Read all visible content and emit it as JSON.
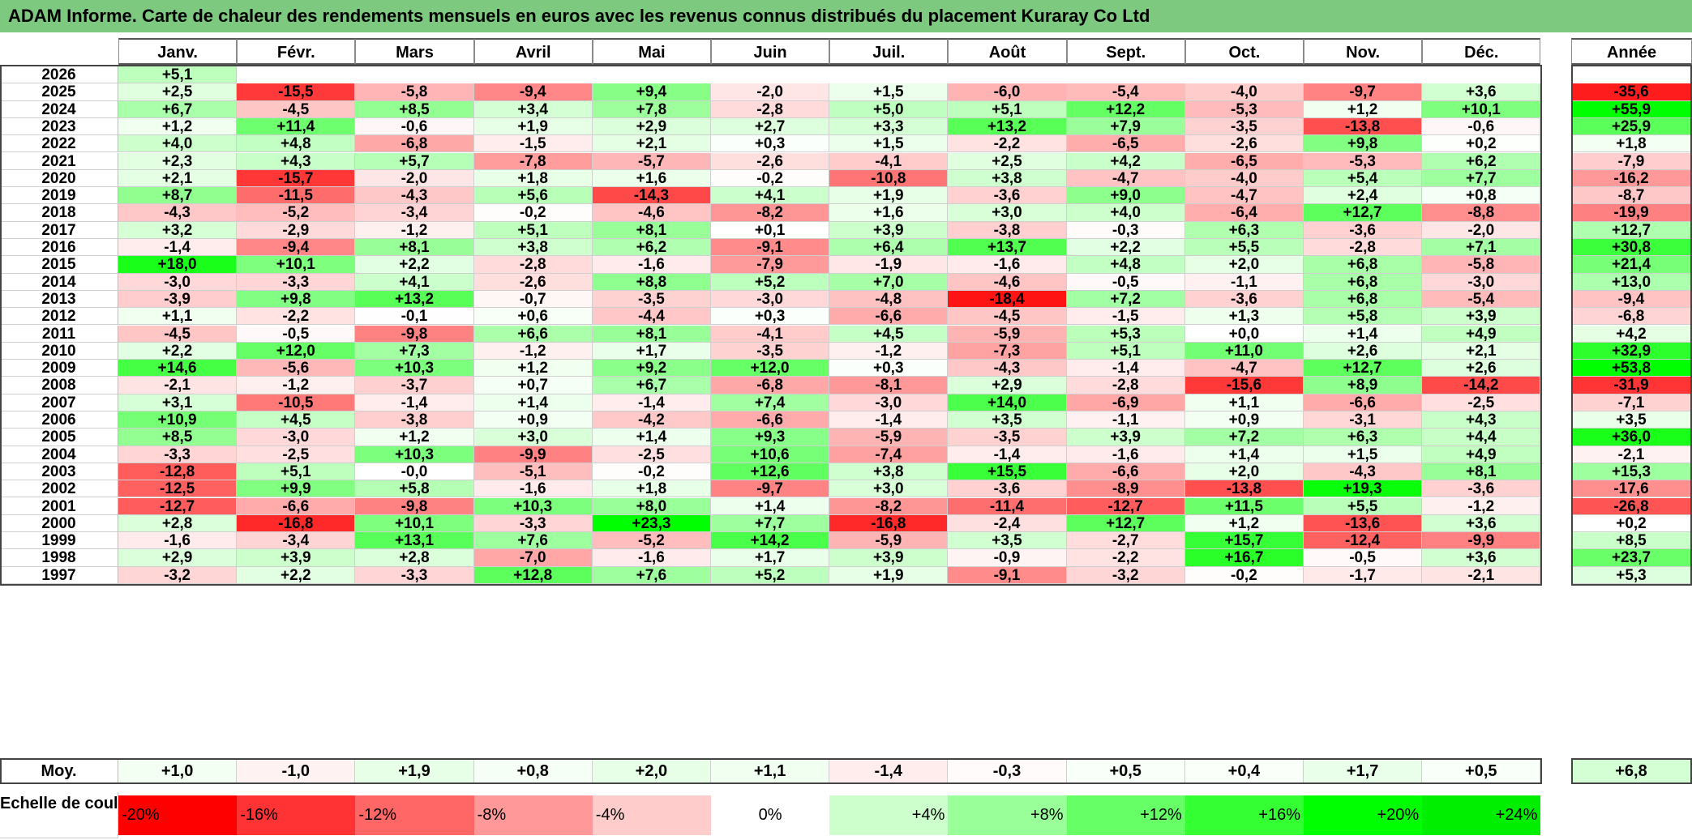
{
  "title": "ADAM Informe. Carte de chaleur des rendements mensuels en euros avec les revenus connus distribués du placement Kuraray Co Ltd",
  "chart_data": {
    "type": "heatmap",
    "title": "ADAM Informe. Carte de chaleur des rendements mensuels en euros avec les revenus connus distribués du placement Kuraray Co Ltd",
    "columns": [
      "Janv.",
      "Févr.",
      "Mars",
      "Avril",
      "Mai",
      "Juin",
      "Juil.",
      "Août",
      "Sept.",
      "Oct.",
      "Nov.",
      "Déc."
    ],
    "annual_header": "Année",
    "rows": [
      {
        "year": "2026",
        "values": [
          "+5,1",
          null,
          null,
          null,
          null,
          null,
          null,
          null,
          null,
          null,
          null,
          null
        ],
        "annual": null
      },
      {
        "year": "2025",
        "values": [
          "+2,5",
          "-15,5",
          "-5,8",
          "-9,4",
          "+9,4",
          "-2,0",
          "+1,5",
          "-6,0",
          "-5,4",
          "-4,0",
          "-9,7",
          "+3,6"
        ],
        "annual": "-35,6"
      },
      {
        "year": "2024",
        "values": [
          "+6,7",
          "-4,5",
          "+8,5",
          "+3,4",
          "+7,8",
          "-2,8",
          "+5,0",
          "+5,1",
          "+12,2",
          "-5,3",
          "+1,2",
          "+10,1"
        ],
        "annual": "+55,9"
      },
      {
        "year": "2023",
        "values": [
          "+1,2",
          "+11,4",
          "-0,6",
          "+1,9",
          "+2,9",
          "+2,7",
          "+3,3",
          "+13,2",
          "+7,9",
          "-3,5",
          "-13,8",
          "-0,6"
        ],
        "annual": "+25,9"
      },
      {
        "year": "2022",
        "values": [
          "+4,0",
          "+4,8",
          "-6,8",
          "-1,5",
          "+2,1",
          "+0,3",
          "+1,5",
          "-2,2",
          "-6,5",
          "-2,6",
          "+9,8",
          "+0,2"
        ],
        "annual": "+1,8"
      },
      {
        "year": "2021",
        "values": [
          "+2,3",
          "+4,3",
          "+5,7",
          "-7,8",
          "-5,7",
          "-2,6",
          "-4,1",
          "+2,5",
          "+4,2",
          "-6,5",
          "-5,3",
          "+6,2"
        ],
        "annual": "-7,9"
      },
      {
        "year": "2020",
        "values": [
          "+2,1",
          "-15,7",
          "-2,0",
          "+1,8",
          "+1,6",
          "-0,2",
          "-10,8",
          "+3,8",
          "-4,7",
          "-4,0",
          "+5,4",
          "+7,7"
        ],
        "annual": "-16,2"
      },
      {
        "year": "2019",
        "values": [
          "+8,7",
          "-11,5",
          "-4,3",
          "+5,6",
          "-14,3",
          "+4,1",
          "+1,9",
          "-3,6",
          "+9,0",
          "-4,7",
          "+2,4",
          "+0,8"
        ],
        "annual": "-8,7"
      },
      {
        "year": "2018",
        "values": [
          "-4,3",
          "-5,2",
          "-3,4",
          "-0,2",
          "-4,6",
          "-8,2",
          "+1,6",
          "+3,0",
          "+4,0",
          "-6,4",
          "+12,7",
          "-8,8"
        ],
        "annual": "-19,9"
      },
      {
        "year": "2017",
        "values": [
          "+3,2",
          "-2,9",
          "-1,2",
          "+5,1",
          "+8,1",
          "+0,1",
          "+3,9",
          "-3,8",
          "-0,3",
          "+6,3",
          "-3,6",
          "-2,0"
        ],
        "annual": "+12,7"
      },
      {
        "year": "2016",
        "values": [
          "-1,4",
          "-9,4",
          "+8,1",
          "+3,8",
          "+6,2",
          "-9,1",
          "+6,4",
          "+13,7",
          "+2,2",
          "+5,5",
          "-2,8",
          "+7,1"
        ],
        "annual": "+30,8"
      },
      {
        "year": "2015",
        "values": [
          "+18,0",
          "+10,1",
          "+2,2",
          "-2,8",
          "-1,6",
          "-7,9",
          "-1,9",
          "-1,6",
          "+4,8",
          "+2,0",
          "+6,8",
          "-5,8"
        ],
        "annual": "+21,4"
      },
      {
        "year": "2014",
        "values": [
          "-3,0",
          "-3,3",
          "+4,1",
          "-2,6",
          "+8,8",
          "+5,2",
          "+7,0",
          "-4,6",
          "-0,5",
          "-1,1",
          "+6,8",
          "-3,0"
        ],
        "annual": "+13,0"
      },
      {
        "year": "2013",
        "values": [
          "-3,9",
          "+9,8",
          "+13,2",
          "-0,7",
          "-3,5",
          "-3,0",
          "-4,8",
          "-18,4",
          "+7,2",
          "-3,6",
          "+6,8",
          "-5,4"
        ],
        "annual": "-9,4"
      },
      {
        "year": "2012",
        "values": [
          "+1,1",
          "-2,2",
          "-0,1",
          "+0,6",
          "-4,4",
          "+0,3",
          "-6,6",
          "-4,5",
          "-1,5",
          "+1,3",
          "+5,8",
          "+3,9"
        ],
        "annual": "-6,8"
      },
      {
        "year": "2011",
        "values": [
          "-4,5",
          "-0,5",
          "-9,8",
          "+6,6",
          "+8,1",
          "-4,1",
          "+4,5",
          "-5,9",
          "+5,3",
          "+0,0",
          "+1,4",
          "+4,9"
        ],
        "annual": "+4,2"
      },
      {
        "year": "2010",
        "values": [
          "+2,2",
          "+12,0",
          "+7,3",
          "-1,2",
          "+1,7",
          "-3,5",
          "-1,2",
          "-7,3",
          "+5,1",
          "+11,0",
          "+2,6",
          "+2,1"
        ],
        "annual": "+32,9"
      },
      {
        "year": "2009",
        "values": [
          "+14,6",
          "-5,6",
          "+10,3",
          "+1,2",
          "+9,2",
          "+12,0",
          "+0,3",
          "-4,3",
          "-1,4",
          "-4,7",
          "+12,7",
          "+2,6"
        ],
        "annual": "+53,8"
      },
      {
        "year": "2008",
        "values": [
          "-2,1",
          "-1,2",
          "-3,7",
          "+0,7",
          "+6,7",
          "-6,8",
          "-8,1",
          "+2,9",
          "-2,8",
          "-15,6",
          "+8,9",
          "-14,2"
        ],
        "annual": "-31,9"
      },
      {
        "year": "2007",
        "values": [
          "+3,1",
          "-10,5",
          "-1,4",
          "+1,4",
          "-1,4",
          "+7,4",
          "-3,0",
          "+14,0",
          "-6,9",
          "+1,1",
          "-6,6",
          "-2,5"
        ],
        "annual": "-7,1"
      },
      {
        "year": "2006",
        "values": [
          "+10,9",
          "+4,5",
          "-3,8",
          "+0,9",
          "-4,2",
          "-6,6",
          "-1,4",
          "+3,5",
          "-1,1",
          "+0,9",
          "-3,1",
          "+4,3"
        ],
        "annual": "+3,5"
      },
      {
        "year": "2005",
        "values": [
          "+8,5",
          "-3,0",
          "+1,2",
          "+3,0",
          "+1,4",
          "+9,3",
          "-5,9",
          "-3,5",
          "+3,9",
          "+7,2",
          "+6,3",
          "+4,4"
        ],
        "annual": "+36,0"
      },
      {
        "year": "2004",
        "values": [
          "-3,3",
          "-2,5",
          "+10,3",
          "-9,9",
          "-2,5",
          "+10,6",
          "-7,4",
          "-1,4",
          "-1,6",
          "+1,4",
          "+1,5",
          "+4,9"
        ],
        "annual": "-2,1"
      },
      {
        "year": "2003",
        "values": [
          "-12,8",
          "+5,1",
          "-0,0",
          "-5,1",
          "-0,2",
          "+12,6",
          "+3,8",
          "+15,5",
          "-6,6",
          "+2,0",
          "-4,3",
          "+8,1"
        ],
        "annual": "+15,3"
      },
      {
        "year": "2002",
        "values": [
          "-12,5",
          "+9,9",
          "+5,8",
          "-1,6",
          "+1,8",
          "-9,7",
          "+3,0",
          "-3,6",
          "-8,9",
          "-13,8",
          "+19,3",
          "-3,6"
        ],
        "annual": "-17,6"
      },
      {
        "year": "2001",
        "values": [
          "-12,7",
          "-6,6",
          "-9,8",
          "+10,3",
          "+8,0",
          "+1,4",
          "-8,2",
          "-11,4",
          "-12,7",
          "+11,5",
          "+5,5",
          "-1,2"
        ],
        "annual": "-26,8"
      },
      {
        "year": "2000",
        "values": [
          "+2,8",
          "-16,8",
          "+10,1",
          "-3,3",
          "+23,3",
          "+7,7",
          "-16,8",
          "-2,4",
          "+12,7",
          "+1,2",
          "-13,6",
          "+3,6"
        ],
        "annual": "+0,2"
      },
      {
        "year": "1999",
        "values": [
          "-1,6",
          "-3,4",
          "+13,1",
          "+7,6",
          "-5,2",
          "+14,2",
          "-5,9",
          "+3,5",
          "-2,7",
          "+15,7",
          "-12,4",
          "-9,9"
        ],
        "annual": "+8,5"
      },
      {
        "year": "1998",
        "values": [
          "+2,9",
          "+3,9",
          "+2,8",
          "-7,0",
          "-1,6",
          "+1,7",
          "+3,9",
          "-0,9",
          "-2,2",
          "+16,7",
          "-0,5",
          "+3,6"
        ],
        "annual": "+23,7"
      },
      {
        "year": "1997",
        "values": [
          "-3,2",
          "+2,2",
          "-3,3",
          "+12,8",
          "+7,6",
          "+5,2",
          "+1,9",
          "-9,1",
          "-3,2",
          "-0,2",
          "-1,7",
          "-2,1"
        ],
        "annual": "+5,3"
      }
    ],
    "average": {
      "label": "Moy.",
      "values": [
        "+1,0",
        "-1,0",
        "+1,9",
        "+0,8",
        "+2,0",
        "+1,1",
        "-1,4",
        "-0,3",
        "+0,5",
        "+0,4",
        "+1,7",
        "+0,5"
      ],
      "annual": "+6,8"
    },
    "color_scale": {
      "label": "Echelle de couleur",
      "stops": [
        {
          "label": "-20%",
          "value": -20,
          "color": "#ff0000"
        },
        {
          "label": "-16%",
          "value": -16,
          "color": "#ff3333"
        },
        {
          "label": "-12%",
          "value": -12,
          "color": "#ff6666"
        },
        {
          "label": "-8%",
          "value": -8,
          "color": "#ff9999"
        },
        {
          "label": "-4%",
          "value": -4,
          "color": "#ffcccc"
        },
        {
          "label": "0%",
          "value": 0,
          "color": "#ffffff"
        },
        {
          "label": "+4%",
          "value": 4,
          "color": "#ccffcc"
        },
        {
          "label": "+8%",
          "value": 8,
          "color": "#99ff99"
        },
        {
          "label": "+12%",
          "value": 12,
          "color": "#66ff66"
        },
        {
          "label": "+16%",
          "value": 16,
          "color": "#33ff33"
        },
        {
          "label": "+20%",
          "value": 20,
          "color": "#00ff00"
        },
        {
          "label": "+24%",
          "value": 24,
          "color": "#00ee00"
        }
      ]
    },
    "annual_scale": {
      "min": -40,
      "max": 40
    }
  }
}
